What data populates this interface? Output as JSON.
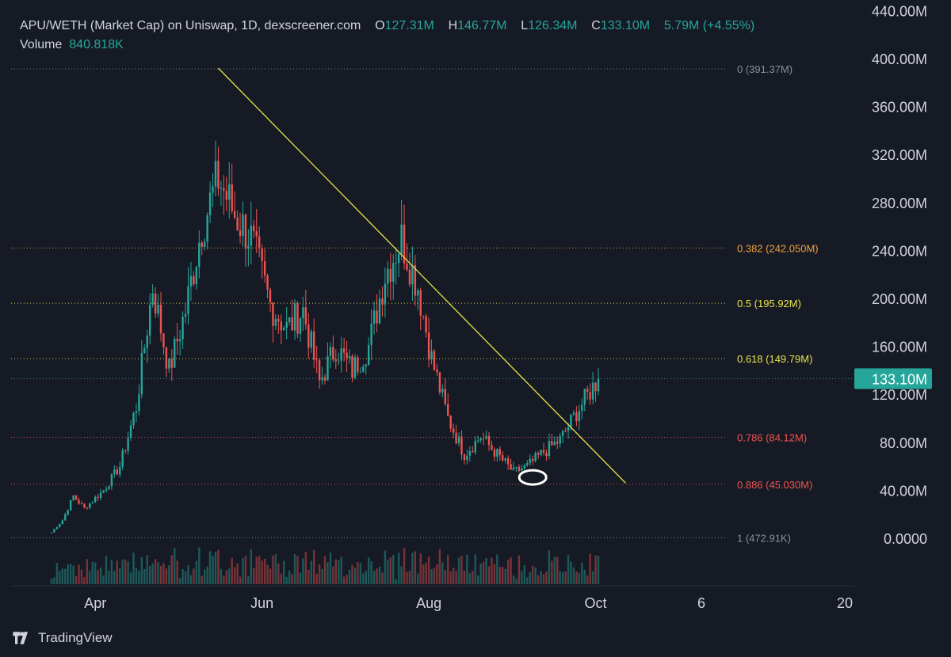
{
  "header": {
    "title": "APU/WETH (Market Cap) on Uniswap, 1D, dexscreener.com",
    "o_label": "O",
    "o_value": "127.31M",
    "h_label": "H",
    "h_value": "146.77M",
    "l_label": "L",
    "l_value": "126.34M",
    "c_label": "C",
    "c_value": "133.10M",
    "change": "5.79M (+4.55%)",
    "volume_label": "Volume",
    "volume_value": "840.818K"
  },
  "brand": {
    "name": "TradingView",
    "icon": "tradingview-logo-icon"
  },
  "colors": {
    "background": "#161a25",
    "up": "#26a69a",
    "down": "#ef5350",
    "trendline": "#e8e24a",
    "fib_0": "#8a8e99",
    "fib_0382": "#f2a03c",
    "fib_05": "#e8e24a",
    "fib_0618": "#e8e24a",
    "fib_0786": "#ef5350",
    "fib_0886": "#ef5350",
    "fib_1": "#8a8e99",
    "price_badge": "#26a69a",
    "axis_text": "#d1d4dc"
  },
  "chart_data": {
    "type": "candlestick",
    "series_name": "APU/WETH (Market Cap)",
    "unit": "M",
    "y_axis": {
      "range": [
        0,
        440
      ],
      "tick_labels": [
        "440.00M",
        "400.00M",
        "360.00M",
        "320.00M",
        "280.00M",
        "240.00M",
        "200.00M",
        "160.00M",
        "120.00M",
        "80.00M",
        "40.00M",
        "0.0000"
      ],
      "tick_values": [
        440,
        400,
        360,
        320,
        280,
        240,
        200,
        160,
        120,
        80,
        40,
        0
      ]
    },
    "x_axis": {
      "tick_labels": [
        "Apr",
        "Jun",
        "Aug",
        "Oct",
        "6",
        "20"
      ]
    },
    "last_price": {
      "value": 133.1,
      "label": "133.10M"
    },
    "fib_levels": [
      {
        "ratio": "0",
        "label": "0 (391.37M)",
        "value": 391.37
      },
      {
        "ratio": "0.382",
        "label": "0.382 (242.050M)",
        "value": 242.05
      },
      {
        "ratio": "0.5",
        "label": "0.5 (195.92M)",
        "value": 195.92
      },
      {
        "ratio": "0.618",
        "label": "0.618 (149.79M)",
        "value": 149.79
      },
      {
        "ratio": "0.786",
        "label": "0.786 (84.12M)",
        "value": 84.12
      },
      {
        "ratio": "0.886",
        "label": "0.886 (45.030M)",
        "value": 45.03
      },
      {
        "ratio": "1",
        "label": "1 (472.91K)",
        "value": 0.47
      }
    ],
    "trendline": {
      "from": {
        "date": "May 16",
        "value": 392
      },
      "to": {
        "date": "Oct 12",
        "value": 46
      }
    },
    "annotation": {
      "type": "ellipse",
      "near": "Sep 8",
      "value": 60
    },
    "price_keypoints": [
      {
        "date": "Mar 16",
        "value": 5
      },
      {
        "date": "Mar 20",
        "value": 15
      },
      {
        "date": "Mar 24",
        "value": 35
      },
      {
        "date": "Mar 28",
        "value": 25
      },
      {
        "date": "Apr 4",
        "value": 40
      },
      {
        "date": "Apr 10",
        "value": 60
      },
      {
        "date": "Apr 16",
        "value": 110
      },
      {
        "date": "Apr 22",
        "value": 210
      },
      {
        "date": "Apr 28",
        "value": 140
      },
      {
        "date": "May 4",
        "value": 190
      },
      {
        "date": "May 10",
        "value": 260
      },
      {
        "date": "May 16",
        "value": 300
      },
      {
        "date": "May 22",
        "value": 270
      },
      {
        "date": "May 28",
        "value": 250
      },
      {
        "date": "Jun 4",
        "value": 195
      },
      {
        "date": "Jun 10",
        "value": 175
      },
      {
        "date": "Jun 16",
        "value": 190
      },
      {
        "date": "Jun 22",
        "value": 130
      },
      {
        "date": "Jun 28",
        "value": 160
      },
      {
        "date": "Jul 4",
        "value": 140
      },
      {
        "date": "Jul 10",
        "value": 160
      },
      {
        "date": "Jul 16",
        "value": 220
      },
      {
        "date": "Jul 22",
        "value": 250
      },
      {
        "date": "Jul 28",
        "value": 210
      },
      {
        "date": "Aug 2",
        "value": 150
      },
      {
        "date": "Aug 8",
        "value": 100
      },
      {
        "date": "Aug 14",
        "value": 70
      },
      {
        "date": "Aug 20",
        "value": 85
      },
      {
        "date": "Aug 26",
        "value": 70
      },
      {
        "date": "Sep 1",
        "value": 55
      },
      {
        "date": "Sep 6",
        "value": 60
      },
      {
        "date": "Sep 12",
        "value": 72
      },
      {
        "date": "Sep 18",
        "value": 82
      },
      {
        "date": "Sep 24",
        "value": 105
      },
      {
        "date": "Oct 2",
        "value": 133
      }
    ]
  }
}
